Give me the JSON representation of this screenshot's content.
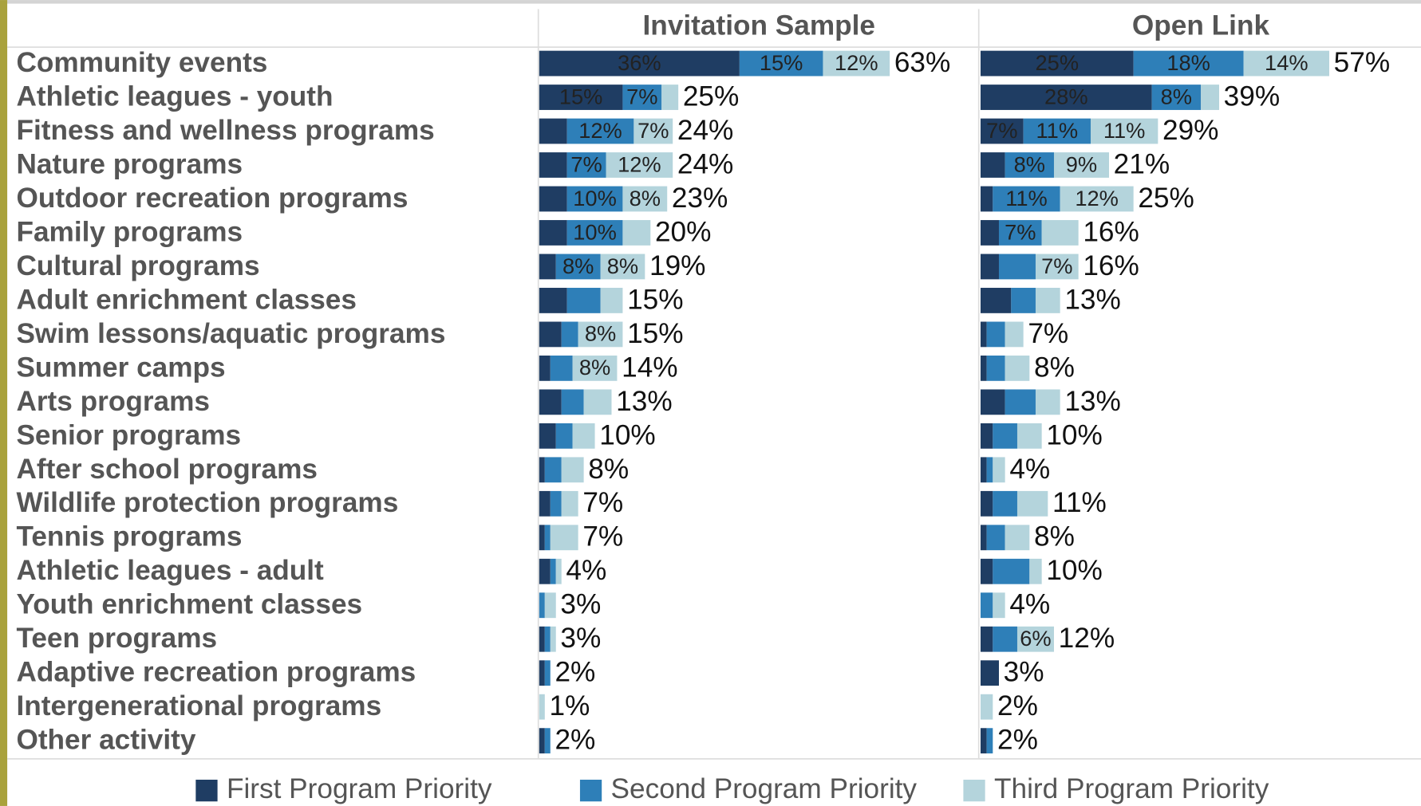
{
  "chart_data": {
    "type": "bar",
    "orientation": "horizontal",
    "stacked": true,
    "categories": [
      "Community events",
      "Athletic leagues - youth",
      "Fitness and wellness programs",
      "Nature programs",
      "Outdoor recreation programs",
      "Family programs",
      "Cultural programs",
      "Adult enrichment classes",
      "Swim lessons/aquatic programs",
      "Summer camps",
      "Arts programs",
      "Senior programs",
      "After school programs",
      "Wildlife protection programs",
      "Tennis programs",
      "Athletic leagues - adult",
      "Youth enrichment classes",
      "Teen programs",
      "Adaptive recreation programs",
      "Intergenerational programs",
      "Other activity"
    ],
    "series": [
      {
        "name": "First Program Priority",
        "color": "#1f3d63"
      },
      {
        "name": "Second Program Priority",
        "color": "#2e7fb8"
      },
      {
        "name": "Third Program Priority",
        "color": "#b4d4dc"
      }
    ],
    "panels": [
      {
        "title": "Invitation Sample",
        "xlim": [
          0,
          79
        ],
        "series": [
          {
            "values": [
              36,
              15,
              5,
              5,
              5,
              5,
              3,
              5,
              4,
              2,
              4,
              3,
              1,
              2,
              1,
              2,
              0,
              1,
              1,
              0,
              1
            ],
            "value_labels": [
              "36%",
              "15%",
              null,
              null,
              null,
              null,
              null,
              null,
              null,
              null,
              null,
              null,
              null,
              null,
              null,
              null,
              null,
              null,
              null,
              null,
              null
            ]
          },
          {
            "values": [
              15,
              7,
              12,
              7,
              10,
              10,
              8,
              6,
              3,
              4,
              4,
              3,
              3,
              2,
              1,
              1,
              1,
              1,
              1,
              0,
              1
            ],
            "value_labels": [
              "15%",
              "7%",
              "12%",
              "7%",
              "10%",
              "10%",
              "8%",
              null,
              null,
              null,
              null,
              null,
              null,
              null,
              null,
              null,
              null,
              null,
              null,
              null,
              null
            ]
          },
          {
            "values": [
              12,
              3,
              7,
              12,
              8,
              5,
              8,
              4,
              8,
              8,
              5,
              4,
              4,
              3,
              5,
              1,
              2,
              1,
              0,
              1,
              0
            ],
            "value_labels": [
              "12%",
              null,
              "7%",
              "12%",
              "8%",
              null,
              "8%",
              null,
              "8%",
              "8%",
              null,
              null,
              null,
              null,
              null,
              null,
              null,
              null,
              null,
              null,
              null
            ]
          }
        ],
        "totals": [
          63,
          25,
          24,
          24,
          23,
          20,
          19,
          15,
          15,
          14,
          13,
          10,
          8,
          7,
          7,
          4,
          3,
          3,
          2,
          1,
          2
        ],
        "total_labels": [
          "63%",
          "25%",
          "24%",
          "24%",
          "23%",
          "20%",
          "19%",
          "15%",
          "15%",
          "14%",
          "13%",
          "10%",
          "8%",
          "7%",
          "7%",
          "4%",
          "3%",
          "3%",
          "2%",
          "1%",
          "2%"
        ]
      },
      {
        "title": "Open Link",
        "xlim": [
          0,
          72
        ],
        "series": [
          {
            "values": [
              25,
              28,
              7,
              4,
              2,
              3,
              3,
              5,
              1,
              1,
              4,
              2,
              1,
              2,
              1,
              2,
              0,
              2,
              3,
              0,
              1
            ],
            "value_labels": [
              "25%",
              "28%",
              "7%",
              null,
              null,
              null,
              null,
              null,
              null,
              null,
              null,
              null,
              null,
              null,
              null,
              null,
              null,
              null,
              null,
              null,
              null
            ]
          },
          {
            "values": [
              18,
              8,
              11,
              8,
              11,
              7,
              6,
              4,
              3,
              3,
              5,
              4,
              1,
              4,
              3,
              6,
              2,
              4,
              0,
              0,
              1
            ],
            "value_labels": [
              "18%",
              "8%",
              "11%",
              "8%",
              "11%",
              "7%",
              null,
              null,
              null,
              null,
              null,
              null,
              null,
              null,
              null,
              null,
              null,
              null,
              null,
              null,
              null
            ]
          },
          {
            "values": [
              14,
              3,
              11,
              9,
              12,
              6,
              7,
              4,
              3,
              4,
              4,
              4,
              2,
              5,
              4,
              2,
              2,
              6,
              0,
              2,
              0
            ],
            "value_labels": [
              "14%",
              null,
              "11%",
              "9%",
              "12%",
              null,
              "7%",
              null,
              null,
              null,
              null,
              null,
              null,
              null,
              null,
              null,
              null,
              "6%",
              null,
              null,
              null
            ]
          }
        ],
        "totals": [
          57,
          39,
          29,
          21,
          25,
          16,
          16,
          13,
          7,
          8,
          13,
          10,
          4,
          11,
          8,
          10,
          4,
          12,
          3,
          2,
          2
        ],
        "total_labels": [
          "57%",
          "39%",
          "29%",
          "21%",
          "25%",
          "16%",
          "16%",
          "13%",
          "7%",
          "8%",
          "13%",
          "10%",
          "4%",
          "11%",
          "8%",
          "10%",
          "4%",
          "12%",
          "3%",
          "2%",
          "2%"
        ]
      }
    ]
  }
}
